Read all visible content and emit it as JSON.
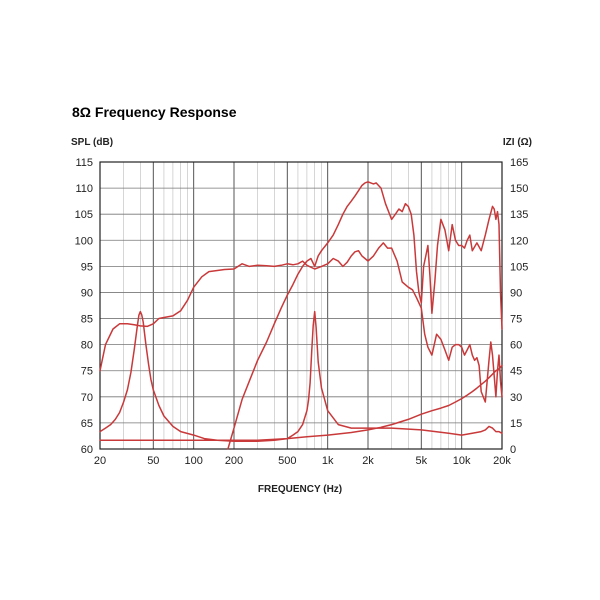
{
  "chart_data": {
    "type": "line",
    "title": "8Ω Frequency Response",
    "ylabel_left": "SPL (dB)",
    "ylabel_right": "IZI (Ω)",
    "xlabel": "FREQUENCY (Hz)",
    "x_scale": "log",
    "xlim": [
      20,
      20000
    ],
    "ylim_left": [
      60,
      115
    ],
    "ylim_right": [
      0,
      165
    ],
    "grid": true,
    "line_color": "#c9393a",
    "x_ticks": [
      {
        "value": 20,
        "label": "20"
      },
      {
        "value": 50,
        "label": "50"
      },
      {
        "value": 100,
        "label": "100"
      },
      {
        "value": 200,
        "label": "200"
      },
      {
        "value": 500,
        "label": "500"
      },
      {
        "value": 1000,
        "label": "1k"
      },
      {
        "value": 2000,
        "label": "2k"
      },
      {
        "value": 5000,
        "label": "5k"
      },
      {
        "value": 10000,
        "label": "10k"
      },
      {
        "value": 20000,
        "label": "20k"
      }
    ],
    "y_ticks_left": [
      115,
      110,
      105,
      100,
      95,
      90,
      85,
      80,
      75,
      70,
      65,
      60
    ],
    "y_ticks_right": [
      165,
      150,
      135,
      120,
      105,
      90,
      75,
      60,
      45,
      30,
      15,
      0
    ],
    "series": [
      {
        "axis": "left",
        "x": [
          20,
          22,
          25,
          28,
          32,
          36,
          40,
          45,
          50,
          55,
          60,
          70,
          80,
          90,
          100,
          115,
          130,
          150,
          170,
          200,
          230,
          260,
          300,
          350,
          400,
          450,
          500,
          550,
          600,
          650,
          700,
          800,
          900,
          1000,
          1100,
          1200,
          1300,
          1400,
          1500,
          1600,
          1700,
          1800,
          1900,
          2000,
          2200,
          2400,
          2600,
          2800,
          3000,
          3300,
          3600,
          4000,
          4300,
          4600,
          5000,
          5300,
          5600,
          6000,
          6500,
          7000,
          7500,
          8000,
          8500,
          9000,
          9500,
          10000,
          10500,
          11000,
          11500,
          12000,
          12500,
          13000,
          13500,
          14000,
          15000,
          16000,
          16500,
          17000,
          17500,
          18000,
          18500,
          19000,
          19500,
          20000
        ],
        "y": [
          75,
          80,
          83,
          84,
          84,
          83.8,
          83.6,
          83.5,
          84,
          85,
          85.2,
          85.5,
          86.5,
          88.5,
          91,
          93,
          94,
          94.2,
          94.4,
          94.5,
          95.5,
          95,
          95.2,
          95.1,
          95,
          95.2,
          95.5,
          95.3,
          95.5,
          96,
          95.2,
          94.5,
          95,
          95.5,
          96.5,
          96,
          95,
          95.8,
          97,
          97.8,
          98,
          97,
          96.5,
          96,
          97,
          98.5,
          99.5,
          98.5,
          98.5,
          96,
          92,
          91,
          90.5,
          89,
          87,
          82,
          79.5,
          78,
          82,
          81,
          79,
          77,
          79.5,
          80,
          80,
          79.5,
          78,
          79,
          80,
          78,
          77,
          77.5,
          76,
          71,
          69,
          77,
          80.5,
          78,
          74,
          70,
          75,
          78,
          73,
          70
        ]
      },
      {
        "axis": "left",
        "x": [
          180,
          200,
          230,
          260,
          300,
          350,
          400,
          450,
          500,
          550,
          600,
          650,
          700,
          750,
          800,
          850,
          900,
          1000,
          1100,
          1200,
          1300,
          1400,
          1500,
          1600,
          1700,
          1800,
          1900,
          2000,
          2100,
          2200,
          2300,
          2500,
          2700,
          3000,
          3200,
          3400,
          3600,
          3800,
          4000,
          4200,
          4400,
          4600,
          4800,
          5000,
          5200,
          5400,
          5600,
          5800,
          6000,
          6300,
          6600,
          7000,
          7500,
          8000,
          8500,
          9000,
          9500,
          10000,
          10500,
          11000,
          11500,
          12000,
          13000,
          14000,
          15000,
          16000,
          17000,
          17500,
          18000,
          18500,
          19000,
          19500,
          20000
        ],
        "y": [
          60,
          64,
          69.5,
          73,
          77,
          80.5,
          84,
          87,
          89.5,
          91.5,
          93.5,
          95,
          96,
          96.5,
          95,
          97,
          98,
          99.5,
          101,
          103,
          105,
          106.5,
          107.5,
          108.5,
          109.5,
          110.5,
          111,
          111.2,
          111,
          110.8,
          111,
          110,
          107,
          104,
          105,
          106,
          105.5,
          107,
          106.5,
          105,
          101,
          94,
          90,
          88,
          95,
          97,
          99,
          93,
          86,
          92,
          99,
          104,
          102,
          98,
          103,
          100,
          99,
          99,
          98.5,
          100,
          101,
          98,
          99.5,
          98,
          101,
          104,
          106.5,
          106,
          104,
          105.5,
          103,
          90,
          83
        ]
      },
      {
        "axis": "right",
        "x": [
          20,
          22,
          24,
          26,
          28,
          30,
          32,
          34,
          36,
          38,
          39,
          40,
          41,
          42,
          44,
          46,
          48,
          50,
          55,
          60,
          70,
          80,
          100,
          120,
          150,
          200,
          300,
          400,
          500,
          550,
          600,
          650,
          700,
          720,
          740,
          760,
          780,
          800,
          820,
          850,
          900,
          1000,
          1200,
          1500,
          2000,
          3000,
          5000,
          8000,
          10000,
          12000,
          14000,
          15000,
          16000,
          17000,
          18000,
          19000,
          20000
        ],
        "y": [
          10,
          12,
          14,
          17,
          21,
          27,
          34,
          44,
          57,
          71,
          77,
          79,
          77,
          73,
          60,
          49,
          40,
          34,
          25,
          19,
          13,
          10,
          8,
          6,
          5,
          4.5,
          4.5,
          5,
          6,
          8,
          10,
          14,
          22,
          28,
          38,
          56,
          71,
          79,
          70,
          50,
          35,
          22,
          14,
          12,
          12,
          12,
          11,
          9,
          8,
          9,
          10,
          11,
          13,
          12,
          10,
          10,
          9
        ]
      },
      {
        "axis": "right",
        "x": [
          20,
          30,
          50,
          100,
          200,
          300,
          500,
          700,
          1000,
          1500,
          2000,
          2500,
          3000,
          4000,
          5000,
          6000,
          7000,
          8000,
          9000,
          10000,
          11000,
          12000,
          13000,
          14000,
          15000,
          16000,
          17000,
          18000,
          19000,
          20000
        ],
        "y": [
          5,
          5,
          5,
          5,
          5,
          5,
          6,
          7,
          8,
          9.5,
          11,
          12.5,
          14,
          17,
          20,
          22,
          23.5,
          25,
          27,
          29,
          31,
          33,
          35,
          37,
          39,
          41,
          43,
          45,
          46,
          48
        ]
      }
    ]
  }
}
